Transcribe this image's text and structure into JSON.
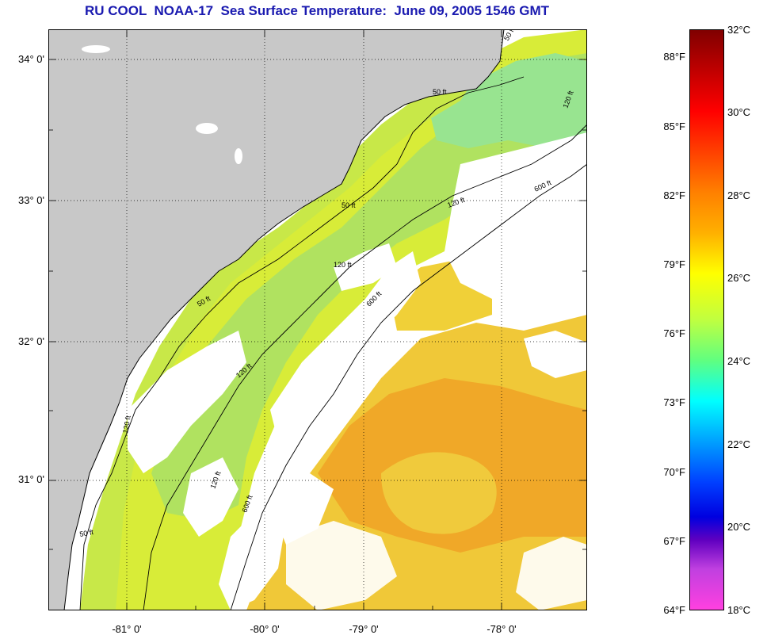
{
  "title": "RU COOL  NOAA-17  Sea Surface Temperature:  June 09, 2005 1546 GMT",
  "map": {
    "lat_labels": [
      "34° 0'",
      "33° 0'",
      "32° 0'",
      "31° 0'"
    ],
    "lon_labels": [
      "-81° 0'",
      "-80° 0'",
      "-79° 0'",
      "-78° 0'"
    ],
    "contour_labels": [
      "50 ft",
      "50 ft",
      "50 ft",
      "50 ft",
      "120 ft",
      "120 ft",
      "120 ft",
      "120 ft",
      "120 ft",
      "600 ft",
      "600 ft",
      "600 ft",
      "50 ft",
      "120 ft"
    ],
    "colors": {
      "land": "#c8c8c8",
      "cloud": "#ffffff",
      "nearshore": "#c0e840",
      "shelf": "#e0ec30",
      "midshelf": "#a8e070",
      "offshore_warm": "#f0b020",
      "offshore_mid": "#f0d030",
      "cool_patch": "#90e890"
    }
  },
  "colorbar": {
    "fahrenheit_labels": [
      "88°F",
      "85°F",
      "82°F",
      "79°F",
      "76°F",
      "73°F",
      "70°F",
      "67°F",
      "64°F"
    ],
    "celsius_labels": [
      "32°C",
      "30°C",
      "28°C",
      "26°C",
      "24°C",
      "22°C",
      "20°C",
      "18°C"
    ],
    "range_c": [
      18,
      32
    ]
  }
}
